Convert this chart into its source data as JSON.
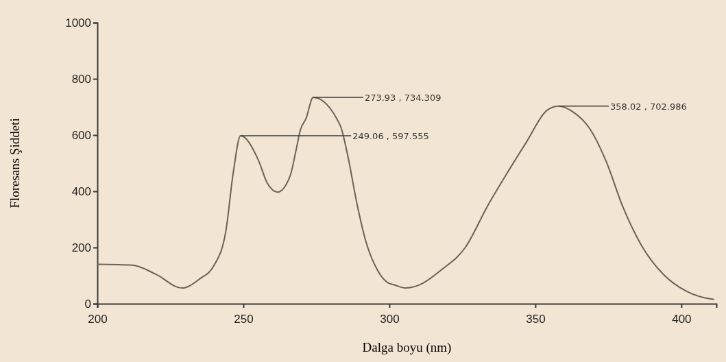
{
  "chart_data": {
    "type": "line",
    "xlabel": "Dalga boyu (nm)",
    "ylabel": "Floresans Şiddeti",
    "color": "#6b6157",
    "xlim": [
      200,
      412
    ],
    "ylim": [
      0,
      1000
    ],
    "xticks": [
      200,
      250,
      300,
      350,
      400
    ],
    "yticks": [
      0,
      200,
      400,
      600,
      800,
      1000
    ],
    "x": [
      200,
      212,
      220,
      229,
      235,
      240,
      244,
      246.5,
      249.06,
      255.1,
      258.2,
      261.7,
      266,
      268,
      269.5,
      271.5,
      273.93,
      283.2,
      285.4,
      289.2,
      292,
      295.8,
      299.3,
      302,
      305.5,
      310.1,
      318,
      326,
      333.7,
      340.7,
      347,
      354,
      358.02,
      362.5,
      368.8,
      374.3,
      379.8,
      386.2,
      393.8,
      401.8,
      411.2
    ],
    "values": [
      140,
      137,
      105,
      56,
      88,
      137,
      258,
      463,
      597.555,
      512,
      429,
      397,
      454,
      544,
      617,
      660,
      734.309,
      634,
      544,
      341,
      220,
      122,
      76,
      66,
      56,
      66,
      122,
      200,
      349,
      471,
      576,
      688,
      702.986,
      685,
      620,
      505,
      349,
      210,
      105,
      44,
      15
    ],
    "annotations": [
      {
        "text": "249.06 , 597.555",
        "x": 249.06,
        "y": 597.555
      },
      {
        "text": "273.93 , 734.309",
        "x": 273.93,
        "y": 734.309
      },
      {
        "text": "358.02 , 702.986",
        "x": 358.02,
        "y": 702.986
      }
    ]
  }
}
